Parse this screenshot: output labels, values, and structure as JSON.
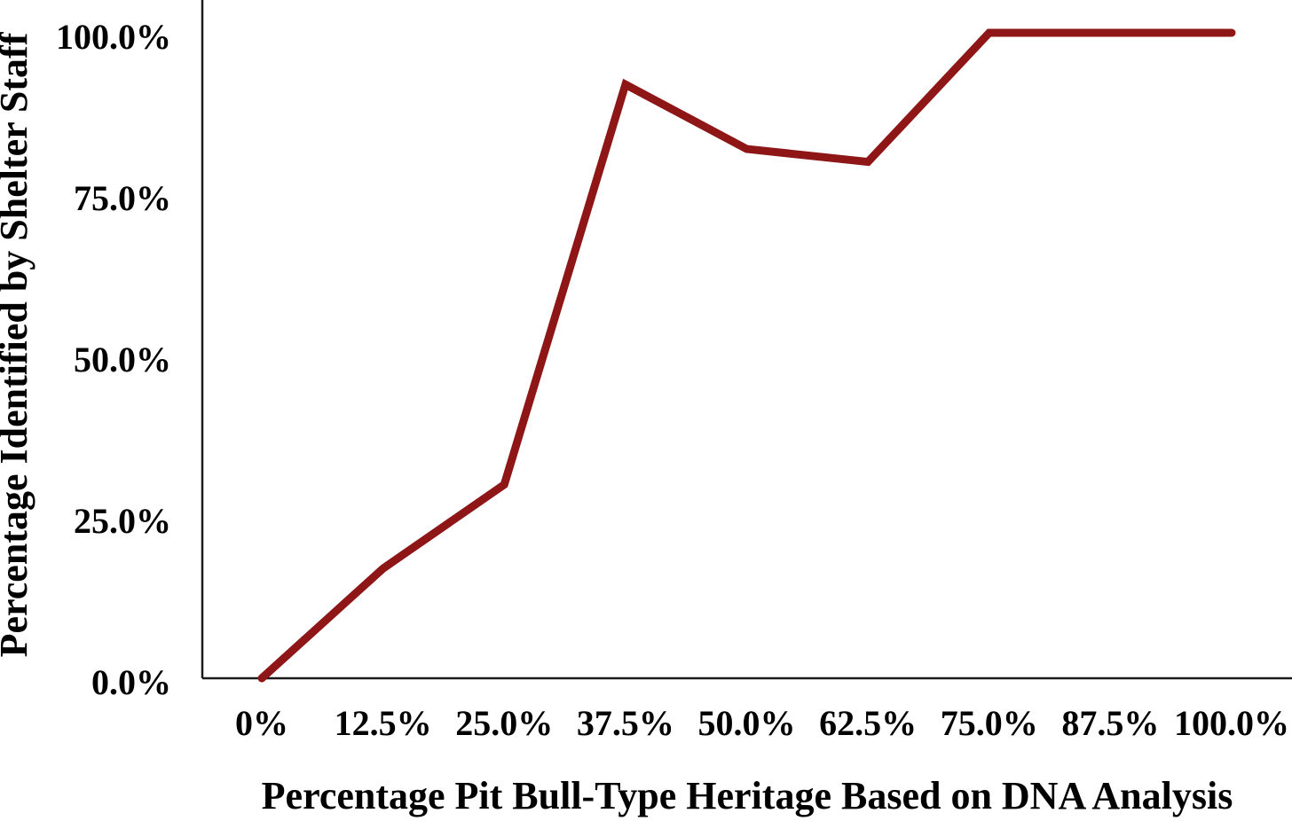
{
  "chart_data": {
    "type": "line",
    "title": "",
    "xlabel": "Percentage Pit Bull-Type Heritage Based on DNA Analysis",
    "ylabel": "Percentage Identified by Shelter Staff",
    "categories": [
      "0%",
      "12.5%",
      "25.0%",
      "37.5%",
      "50.0%",
      "62.5%",
      "75.0%",
      "87.5%",
      "100.0%"
    ],
    "x_values": [
      0,
      12.5,
      25,
      37.5,
      50,
      62.5,
      75,
      87.5,
      100
    ],
    "series": [
      {
        "name": "Percentage identified by shelter staff",
        "values": [
          0,
          17,
          30,
          92,
          82,
          80,
          100,
          100,
          100
        ]
      }
    ],
    "y_ticks": [
      "0.0%",
      "25.0%",
      "50.0%",
      "75.0%",
      "100.0%"
    ],
    "y_tick_values": [
      0,
      25,
      50,
      75,
      100
    ],
    "ylim": [
      0,
      100
    ],
    "grid": false,
    "legend_position": "none",
    "line_color": "#8E1616",
    "axis_color": "#1a1a1a",
    "background_color": "#ffffff"
  }
}
